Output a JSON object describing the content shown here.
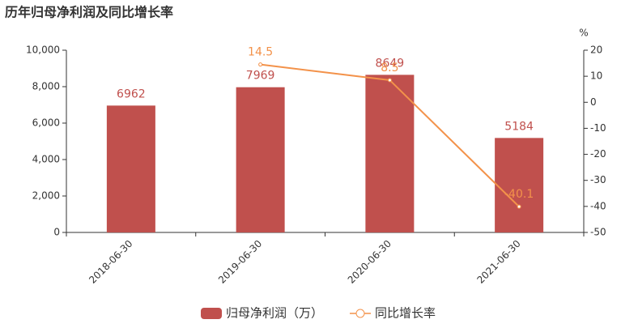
{
  "chart_data": {
    "type": "bar",
    "title": "历年归母净利润及同比增长率",
    "categories": [
      "2018-06-30",
      "2019-06-30",
      "2020-06-30",
      "2021-06-30"
    ],
    "series": [
      {
        "name": "归母净利润（万）",
        "color": "#c0504d",
        "values": [
          6962,
          7969,
          8649,
          5184
        ]
      },
      {
        "name": "同比增长率",
        "type": "line",
        "axis": "y2",
        "color": "#f3924a",
        "values": [
          null,
          14.5,
          8.5,
          -40.1
        ]
      }
    ],
    "ylim": [
      0,
      10000
    ],
    "yticks": [
      0,
      {
        "value": 2000,
        "label": "2,000"
      },
      {
        "value": 4000,
        "label": "4,000"
      },
      {
        "value": 6000,
        "label": "6,000"
      },
      {
        "value": 8000,
        "label": "8,000"
      },
      {
        "value": 10000,
        "label": "10,000"
      }
    ],
    "y2label": "%",
    "y2lim": [
      -50,
      20
    ],
    "y2ticks": [
      -50,
      -40,
      -30,
      -20,
      -10,
      0,
      10,
      20
    ]
  }
}
